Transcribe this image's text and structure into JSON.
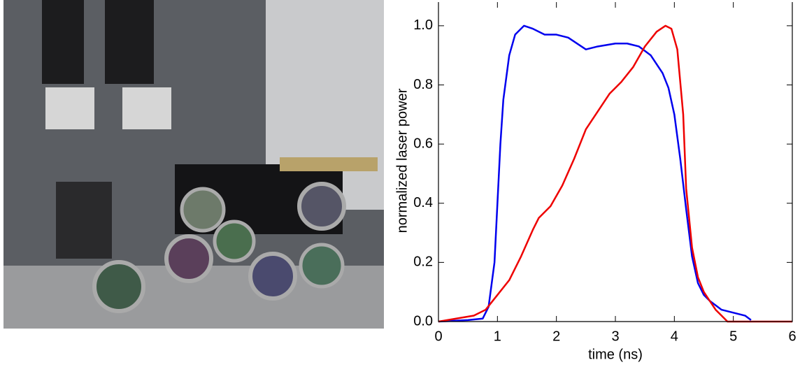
{
  "chart_data": {
    "type": "line",
    "xlabel": "time (ns)",
    "ylabel": "normalized laser power",
    "xlim": [
      0,
      6
    ],
    "ylim": [
      0,
      1.08
    ],
    "xticks": [
      0,
      1,
      2,
      3,
      4,
      5,
      6
    ],
    "yticks": [
      {
        "value": 0,
        "label": "0.0"
      },
      0.2,
      0.4,
      0.6,
      0.8,
      {
        "value": 1,
        "label": "1.0"
      }
    ],
    "series": [
      {
        "color": "#0000ee",
        "x": [
          0,
          0.5,
          0.75,
          0.85,
          0.95,
          1.0,
          1.05,
          1.1,
          1.2,
          1.3,
          1.45,
          1.6,
          1.8,
          2.0,
          2.2,
          2.5,
          2.7,
          3.0,
          3.2,
          3.4,
          3.6,
          3.8,
          3.9,
          4.0,
          4.1,
          4.2,
          4.3,
          4.4,
          4.5,
          4.6,
          4.8,
          5.0,
          5.2,
          5.3
        ],
        "values": [
          0,
          0.005,
          0.01,
          0.05,
          0.2,
          0.4,
          0.6,
          0.75,
          0.9,
          0.97,
          1.0,
          0.99,
          0.97,
          0.97,
          0.96,
          0.92,
          0.93,
          0.94,
          0.94,
          0.93,
          0.9,
          0.84,
          0.79,
          0.7,
          0.55,
          0.38,
          0.22,
          0.13,
          0.09,
          0.07,
          0.04,
          0.03,
          0.02,
          0.005
        ]
      },
      {
        "color": "#ee0000",
        "x": [
          0,
          0.3,
          0.6,
          0.8,
          1.0,
          1.2,
          1.4,
          1.6,
          1.7,
          1.9,
          2.1,
          2.3,
          2.5,
          2.7,
          2.9,
          3.1,
          3.3,
          3.5,
          3.7,
          3.85,
          3.95,
          4.05,
          4.15,
          4.2,
          4.3,
          4.4,
          4.5,
          4.6,
          4.7,
          4.8,
          4.9,
          5.0,
          6.0
        ],
        "values": [
          0,
          0.01,
          0.02,
          0.04,
          0.09,
          0.14,
          0.22,
          0.31,
          0.35,
          0.39,
          0.46,
          0.55,
          0.65,
          0.71,
          0.77,
          0.81,
          0.86,
          0.93,
          0.98,
          1.0,
          0.99,
          0.92,
          0.7,
          0.45,
          0.25,
          0.15,
          0.1,
          0.07,
          0.04,
          0.02,
          0,
          0,
          0
        ]
      }
    ]
  }
}
